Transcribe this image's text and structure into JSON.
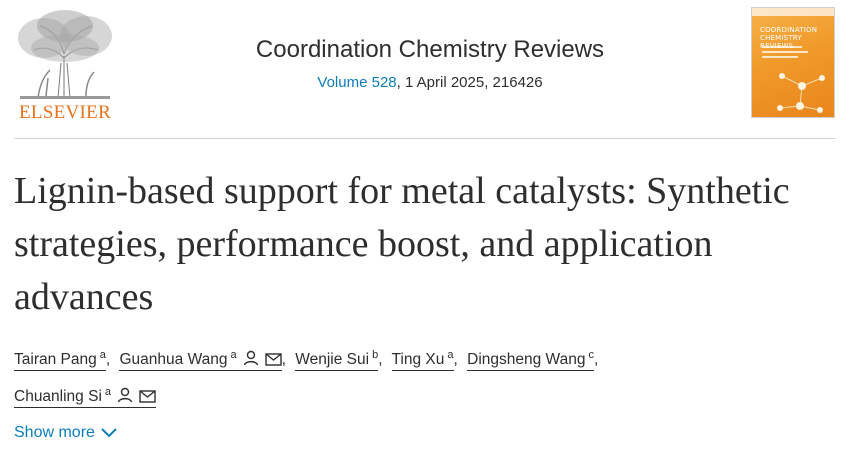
{
  "publisher": {
    "name": "ELSEVIER"
  },
  "journal": {
    "name": "Coordination Chemistry Reviews",
    "volume": "Volume 528",
    "issue_info": ", 1 April 2025, 216426",
    "cover_title_line1": "COORDINATION",
    "cover_title_line2": "CHEMISTRY REVIEWS"
  },
  "article": {
    "title": "Lignin-based support for metal catalysts: Synthetic strategies, performance boost, and application advances"
  },
  "authors": [
    {
      "name": "Tairan Pang",
      "affil": "a",
      "has_person_icon": false,
      "has_mail_icon": false
    },
    {
      "name": "Guanhua Wang",
      "affil": "a",
      "has_person_icon": true,
      "has_mail_icon": true
    },
    {
      "name": "Wenjie Sui",
      "affil": "b",
      "has_person_icon": false,
      "has_mail_icon": false
    },
    {
      "name": "Ting Xu",
      "affil": "a",
      "has_person_icon": false,
      "has_mail_icon": false
    },
    {
      "name": "Dingsheng Wang",
      "affil": "c",
      "has_person_icon": false,
      "has_mail_icon": false
    },
    {
      "name": "Chuanling Si",
      "affil": "a",
      "has_person_icon": true,
      "has_mail_icon": true
    }
  ],
  "actions": {
    "show_more": "Show more"
  },
  "colors": {
    "link": "#0c7dbb",
    "brand": "#e9711c",
    "text": "#2e2e2e"
  },
  "icons": {
    "person": "person-icon",
    "mail": "mail-icon",
    "chevron": "chevron-down-icon"
  }
}
